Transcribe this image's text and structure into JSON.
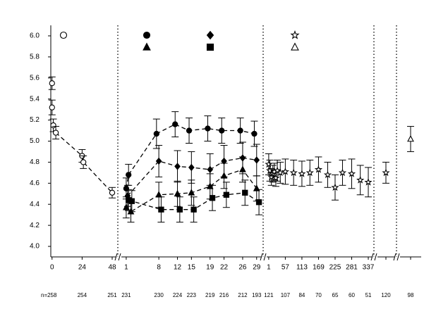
{
  "chart_data": {
    "type": "scatter",
    "ylim": [
      3.9,
      6.1
    ],
    "yticks": [
      {
        "value": 4.0,
        "label": "4.0"
      },
      {
        "value": 4.2,
        "label": "4.2"
      },
      {
        "value": 4.4,
        "label": "4.4"
      },
      {
        "value": 4.6,
        "label": "4.6"
      },
      {
        "value": 4.8,
        "label": "4.8"
      },
      {
        "value": 5.0,
        "label": "5.0"
      },
      {
        "value": 5.2,
        "label": "5.2"
      },
      {
        "value": 5.4,
        "label": "5.4"
      },
      {
        "value": 5.6,
        "label": "5.6"
      },
      {
        "value": 5.8,
        "label": "5.8"
      },
      {
        "value": 6.0,
        "label": "6.0"
      }
    ],
    "n_label": "n=",
    "legend": [
      {
        "marker": "circle",
        "fill": "none"
      },
      {
        "marker": "circle",
        "fill": "#000"
      },
      {
        "marker": "triangle",
        "fill": "#000"
      },
      {
        "marker": "diamond",
        "fill": "#000"
      },
      {
        "marker": "square",
        "fill": "#000"
      },
      {
        "marker": "star",
        "fill": "none"
      },
      {
        "marker": "triangle",
        "fill": "none"
      }
    ],
    "segments": [
      {
        "xlim": [
          -1,
          52.5
        ],
        "xticks": [
          0,
          24,
          48
        ],
        "n": [
          258,
          254,
          251
        ],
        "series": [
          {
            "marker": "circle",
            "fill": "none",
            "line": false,
            "x": [
              0,
              0,
              1
            ],
            "values": [
              5.55,
              5.32,
              5.15
            ],
            "errors": [
              0.06,
              0.07,
              0.06
            ]
          },
          {
            "marker": "circle",
            "fill": "none",
            "line": true,
            "x": [
              3,
              24,
              25,
              48
            ],
            "values": [
              5.08,
              4.86,
              4.8,
              4.51
            ],
            "errors": [
              0.06,
              0.06,
              0.06,
              0.05
            ]
          }
        ]
      },
      {
        "xlim": [
          -0.5,
          30.4
        ],
        "xticks": [
          1,
          8,
          12,
          15,
          19,
          22,
          26,
          29
        ],
        "n": [
          231,
          230,
          224,
          223,
          219,
          216,
          212,
          193
        ],
        "series": [
          {
            "marker": "circle",
            "fill": "#000",
            "line": true,
            "x": [
              1,
              1.5,
              7.5,
              11.5,
              14.5,
              18.5,
              21.5,
              25.5,
              28.5
            ],
            "values": [
              4.55,
              4.68,
              5.07,
              5.16,
              5.1,
              5.12,
              5.1,
              5.1,
              5.07
            ],
            "errors": [
              0.1,
              0.1,
              0.14,
              0.12,
              0.12,
              0.12,
              0.12,
              0.12,
              0.12
            ]
          },
          {
            "marker": "diamond",
            "fill": "#000",
            "line": true,
            "x": [
              1.3,
              8,
              12,
              15,
              19,
              22,
              26,
              29
            ],
            "values": [
              4.48,
              4.81,
              4.76,
              4.75,
              4.73,
              4.81,
              4.84,
              4.82
            ],
            "errors": [
              0.1,
              0.15,
              0.15,
              0.15,
              0.15,
              0.15,
              0.15,
              0.15
            ]
          },
          {
            "marker": "triangle",
            "fill": "#000",
            "line": true,
            "x": [
              1,
              2,
              8,
              12,
              15,
              19,
              22,
              26,
              29
            ],
            "values": [
              4.37,
              4.33,
              4.49,
              4.5,
              4.51,
              4.57,
              4.67,
              4.73,
              4.55
            ],
            "errors": [
              0.1,
              0.1,
              0.12,
              0.12,
              0.12,
              0.12,
              0.12,
              0.12,
              0.12
            ]
          },
          {
            "marker": "square",
            "fill": "#000",
            "line": true,
            "x": [
              1.5,
              2.2,
              8.5,
              12.5,
              15.5,
              19.5,
              22.5,
              26.5,
              29.5
            ],
            "values": [
              4.44,
              4.43,
              4.35,
              4.35,
              4.35,
              4.46,
              4.49,
              4.51,
              4.42
            ],
            "errors": [
              0.1,
              0.1,
              0.12,
              0.12,
              0.12,
              0.12,
              0.12,
              0.12,
              0.12
            ]
          }
        ]
      },
      {
        "xlim": [
          -13,
          356
        ],
        "xticks": [
          1,
          57,
          113,
          169,
          225,
          281,
          337
        ],
        "n": [
          121,
          107,
          84,
          70,
          65,
          60,
          51
        ],
        "series": [
          {
            "marker": "star",
            "fill": "none",
            "line": false,
            "x": [
              1,
              5,
              10,
              15,
              20,
              25,
              30,
              40,
              57,
              85,
              113,
              140,
              169,
              200,
              225,
              250,
              281,
              310,
              337
            ],
            "values": [
              4.78,
              4.72,
              4.66,
              4.69,
              4.71,
              4.65,
              4.72,
              4.7,
              4.71,
              4.7,
              4.69,
              4.7,
              4.73,
              4.68,
              4.56,
              4.7,
              4.69,
              4.63,
              4.61
            ],
            "errors": [
              0.1,
              0.1,
              0.08,
              0.08,
              0.08,
              0.08,
              0.1,
              0.1,
              0.12,
              0.12,
              0.12,
              0.12,
              0.12,
              0.12,
              0.12,
              0.12,
              0.14,
              0.14,
              0.14
            ]
          }
        ]
      },
      {
        "xlim": [
          0,
          2
        ],
        "xticks": [
          {
            "value": 1,
            "label": null
          }
        ],
        "n": [
          120
        ],
        "series": [
          {
            "marker": "star",
            "fill": "none",
            "line": false,
            "x": [
              1
            ],
            "values": [
              4.7
            ],
            "errors": [
              0.1
            ]
          }
        ]
      },
      {
        "xlim": [
          0,
          2
        ],
        "xticks": [
          {
            "value": 1,
            "label": null
          }
        ],
        "n": [
          98
        ],
        "series": [
          {
            "marker": "triangle",
            "fill": "none",
            "line": false,
            "x": [
              1
            ],
            "values": [
              5.02
            ],
            "errors": [
              0.12
            ]
          }
        ]
      }
    ]
  }
}
